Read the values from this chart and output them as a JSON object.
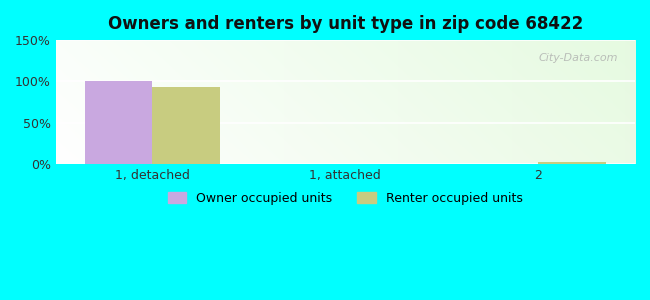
{
  "title": "Owners and renters by unit type in zip code 68422",
  "categories": [
    "1, detached",
    "1, attached",
    "2"
  ],
  "owner_values": [
    100,
    0,
    0
  ],
  "renter_values": [
    93,
    0,
    3
  ],
  "owner_color": "#c9a8e0",
  "renter_color": "#c8cc80",
  "ylim": [
    0,
    150
  ],
  "yticks": [
    0,
    50,
    100,
    150
  ],
  "ytick_labels": [
    "0%",
    "50%",
    "100%",
    "150%"
  ],
  "outer_bg": "#00ffff",
  "bar_width": 0.35,
  "legend_owner": "Owner occupied units",
  "legend_renter": "Renter occupied units",
  "watermark": "City-Data.com"
}
